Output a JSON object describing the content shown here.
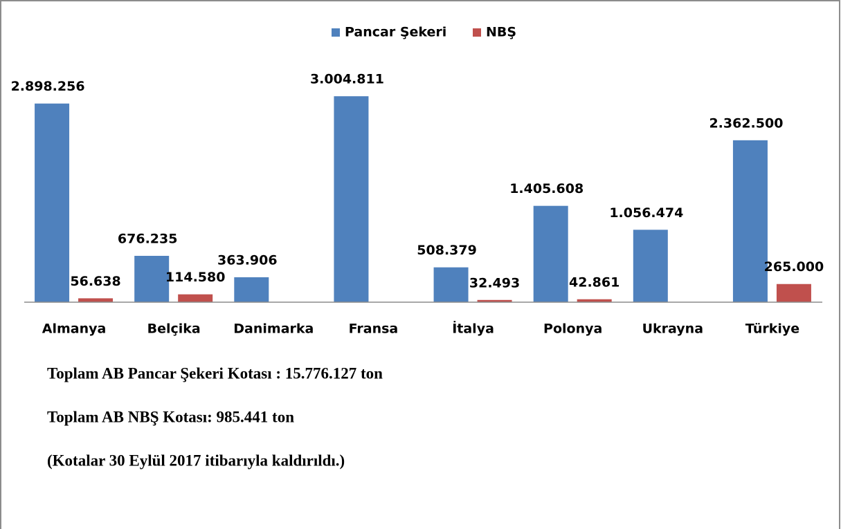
{
  "chart_data": {
    "type": "bar",
    "categories": [
      "Almanya",
      "Belçika",
      "Danimarka",
      "Fransa",
      "İtalya",
      "Polonya",
      "Ukrayna",
      "Türkiye"
    ],
    "series": [
      {
        "name": "Pancar Şekeri",
        "color": "#4f81bd",
        "values": [
          2898256,
          676235,
          363906,
          3004811,
          508379,
          1405608,
          1056474,
          2362500
        ],
        "value_labels": [
          "2.898.256",
          "676.235",
          "363.906",
          "3.004.811",
          "508.379",
          "1.405.608",
          "1.056.474",
          "2.362.500"
        ]
      },
      {
        "name": "NBŞ",
        "color": "#c0504d",
        "values": [
          56638,
          114580,
          null,
          null,
          32493,
          42861,
          null,
          265000
        ],
        "value_labels": [
          "56.638",
          "114.580",
          null,
          null,
          "32.493",
          "42.861",
          null,
          "265.000"
        ]
      }
    ],
    "ylim": [
      0,
      3400000
    ],
    "legend": "top",
    "annotations": [
      "Toplam AB Pancar Şekeri Kotası : 15.776.127 ton",
      "Toplam AB NBŞ Kotası: 985.441 ton",
      "(Kotalar 30 Eylül 2017 itibarıyla kaldırıldı.)"
    ]
  }
}
